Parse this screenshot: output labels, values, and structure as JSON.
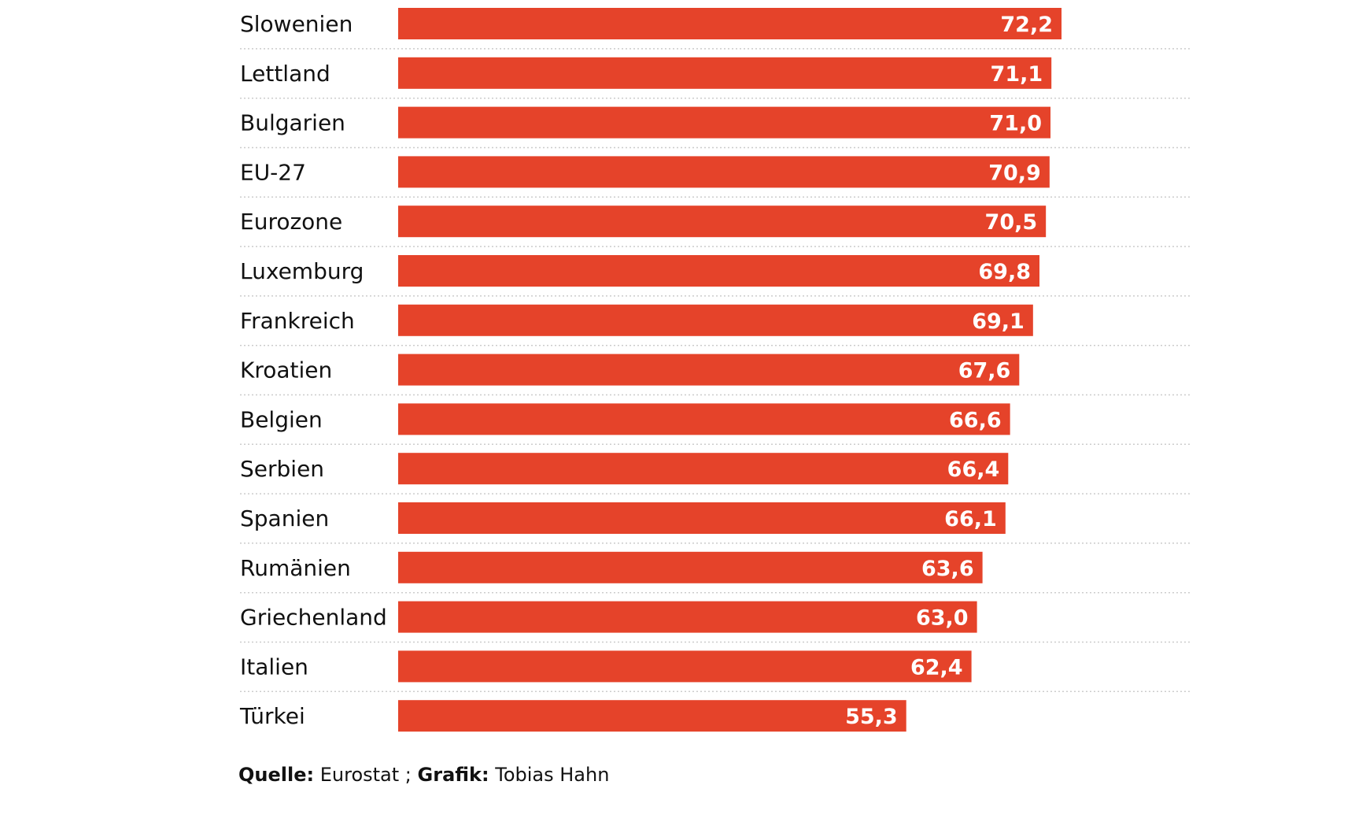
{
  "chart_data": {
    "type": "bar",
    "orientation": "horizontal",
    "categories": [
      "Slowenien",
      "Lettland",
      "Bulgarien",
      "EU-27",
      "Eurozone",
      "Luxemburg",
      "Frankreich",
      "Kroatien",
      "Belgien",
      "Serbien",
      "Spanien",
      "Rumänien",
      "Griechenland",
      "Italien",
      "Türkei"
    ],
    "values": [
      72.2,
      71.1,
      71.0,
      70.9,
      70.5,
      69.8,
      69.1,
      67.6,
      66.6,
      66.4,
      66.1,
      63.6,
      63.0,
      62.4,
      55.3
    ],
    "value_labels": [
      "72,2",
      "71,1",
      "71,0",
      "70,9",
      "70,5",
      "69,8",
      "69,1",
      "67,6",
      "66,6",
      "66,4",
      "66,1",
      "63,6",
      "63,0",
      "62,4",
      "55,3"
    ],
    "bar_color": "#e5432a",
    "separator_color": "#cccccc",
    "xlim": [
      0,
      86.5
    ],
    "grid": false,
    "legend": false
  },
  "footer": {
    "source_label": "Quelle:",
    "source_value": "Eurostat ;",
    "graphic_label": "Grafik:",
    "graphic_value": "Tobias Hahn"
  }
}
